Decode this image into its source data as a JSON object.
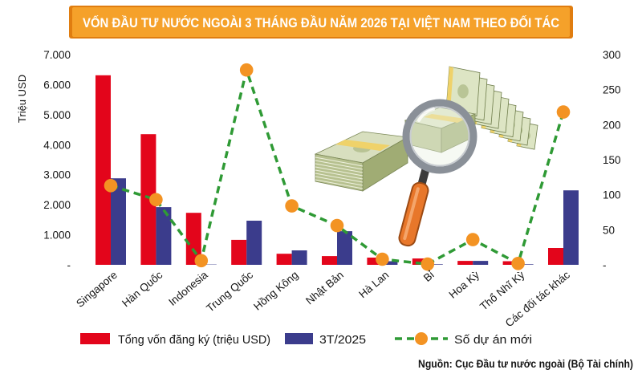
{
  "source": "Nguồn: Cục Đầu tư nước ngoài (Bộ Tài chính)",
  "colors": {
    "banner": "#f5a12a",
    "banner_shadow": "#e07d10",
    "banner_text": "#ffffff"
  },
  "chart_data": {
    "type": "bar",
    "title": "VỐN ĐẦU TƯ NƯỚC NGOÀI 3 THÁNG ĐẦU NĂM 2026 TẠI VIỆT NAM THEO ĐỐI TÁC",
    "xlabel": "",
    "ylabel": "Triệu USD",
    "ylim": [
      0,
      7000
    ],
    "y2lim": [
      0,
      300
    ],
    "y_ticks": [
      {
        "value": 0,
        "label": "-"
      },
      {
        "value": 1000,
        "label": "1.000"
      },
      {
        "value": 2000,
        "label": "2.000"
      },
      {
        "value": 3000,
        "label": "3.000"
      },
      {
        "value": 4000,
        "label": "4.000"
      },
      {
        "value": 5000,
        "label": "5.000"
      },
      {
        "value": 6000,
        "label": "6.000"
      },
      {
        "value": 7000,
        "label": "7.000"
      }
    ],
    "y2_ticks": [
      {
        "value": 0,
        "label": "-"
      },
      {
        "value": 50,
        "label": "50"
      },
      {
        "value": 100,
        "label": "100"
      },
      {
        "value": 150,
        "label": "150"
      },
      {
        "value": 200,
        "label": "200"
      },
      {
        "value": 250,
        "label": "250"
      },
      {
        "value": 300,
        "label": "300"
      }
    ],
    "categories": [
      "Singapore",
      "Hàn Quốc",
      "Indonesia",
      "Trung Quốc",
      "Hồng Kông",
      "Nhật Bản",
      "Hà Lan",
      "Bỉ",
      "Hoa Kỳ",
      "Thổ Nhĩ Kỳ",
      "Các đối tác khác"
    ],
    "series": [
      {
        "name": "Tổng vốn đăng ký (triệu USD)",
        "type": "bar",
        "axis": "left",
        "color": "#e3051b",
        "values": [
          6310,
          4350,
          1730,
          830,
          370,
          290,
          240,
          210,
          130,
          120,
          560
        ]
      },
      {
        "name": "3T/2025",
        "type": "bar",
        "axis": "left",
        "color": "#3b3c8c",
        "values": [
          2880,
          1920,
          10,
          1470,
          480,
          1120,
          120,
          20,
          130,
          20,
          2480
        ]
      },
      {
        "name": "Số dự án mới",
        "type": "line",
        "style": "dashed",
        "axis": "right",
        "color": "#2f9a35",
        "marker_color": "#f39323",
        "values": [
          113,
          93,
          6,
          278,
          84,
          56,
          8,
          1,
          36,
          2,
          218
        ]
      }
    ],
    "legend": "bottom",
    "grid": false
  }
}
